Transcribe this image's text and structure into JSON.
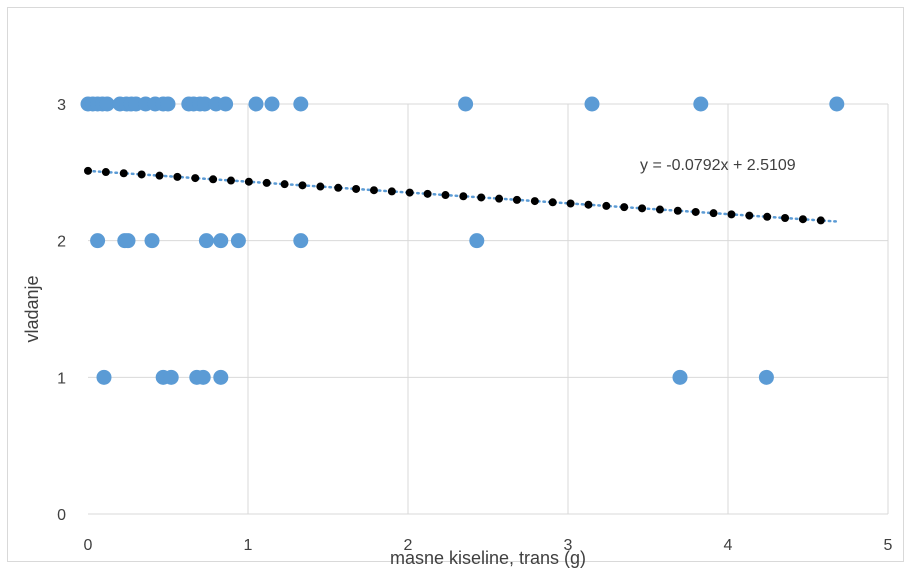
{
  "chart_data": {
    "type": "scatter",
    "title": "",
    "xlabel": "masne kiseline, trans (g)",
    "ylabel": "vladanje",
    "xlim": [
      0,
      5
    ],
    "ylim": [
      0,
      3
    ],
    "x_ticks": [
      "0",
      "1",
      "2",
      "3",
      "4",
      "5"
    ],
    "y_ticks": [
      "0",
      "1",
      "2",
      "3"
    ],
    "grid": true,
    "legend": "none",
    "colors": {
      "points": "#5b9bd5",
      "trendline": "#5b9bd5",
      "trend_dots": "#000000",
      "grid": "#d9d9d9",
      "text": "#404040"
    },
    "series": [
      {
        "values": [
          {
            "x": 0.0,
            "y": 3
          },
          {
            "x": 0.03,
            "y": 3
          },
          {
            "x": 0.06,
            "y": 3
          },
          {
            "x": 0.09,
            "y": 3
          },
          {
            "x": 0.12,
            "y": 3
          },
          {
            "x": 0.2,
            "y": 3
          },
          {
            "x": 0.24,
            "y": 3
          },
          {
            "x": 0.27,
            "y": 3
          },
          {
            "x": 0.3,
            "y": 3
          },
          {
            "x": 0.36,
            "y": 3
          },
          {
            "x": 0.42,
            "y": 3
          },
          {
            "x": 0.47,
            "y": 3
          },
          {
            "x": 0.5,
            "y": 3
          },
          {
            "x": 0.63,
            "y": 3
          },
          {
            "x": 0.66,
            "y": 3
          },
          {
            "x": 0.7,
            "y": 3
          },
          {
            "x": 0.73,
            "y": 3
          },
          {
            "x": 0.8,
            "y": 3
          },
          {
            "x": 0.86,
            "y": 3
          },
          {
            "x": 1.05,
            "y": 3
          },
          {
            "x": 1.15,
            "y": 3
          },
          {
            "x": 1.33,
            "y": 3
          },
          {
            "x": 2.36,
            "y": 3
          },
          {
            "x": 3.15,
            "y": 3
          },
          {
            "x": 3.83,
            "y": 3
          },
          {
            "x": 4.68,
            "y": 3
          },
          {
            "x": 0.06,
            "y": 2
          },
          {
            "x": 0.23,
            "y": 2
          },
          {
            "x": 0.25,
            "y": 2
          },
          {
            "x": 0.4,
            "y": 2
          },
          {
            "x": 0.74,
            "y": 2
          },
          {
            "x": 0.83,
            "y": 2
          },
          {
            "x": 0.94,
            "y": 2
          },
          {
            "x": 1.33,
            "y": 2
          },
          {
            "x": 2.43,
            "y": 2
          },
          {
            "x": 0.1,
            "y": 1
          },
          {
            "x": 0.47,
            "y": 1
          },
          {
            "x": 0.52,
            "y": 1
          },
          {
            "x": 0.68,
            "y": 1
          },
          {
            "x": 0.72,
            "y": 1
          },
          {
            "x": 0.83,
            "y": 1
          },
          {
            "x": 3.7,
            "y": 1
          },
          {
            "x": 4.24,
            "y": 1
          }
        ]
      }
    ],
    "trendline": {
      "slope": -0.0792,
      "intercept": 2.5109,
      "x_range": [
        0,
        4.68
      ],
      "equation_label": "y = -0.0792x + 2.5109"
    }
  }
}
